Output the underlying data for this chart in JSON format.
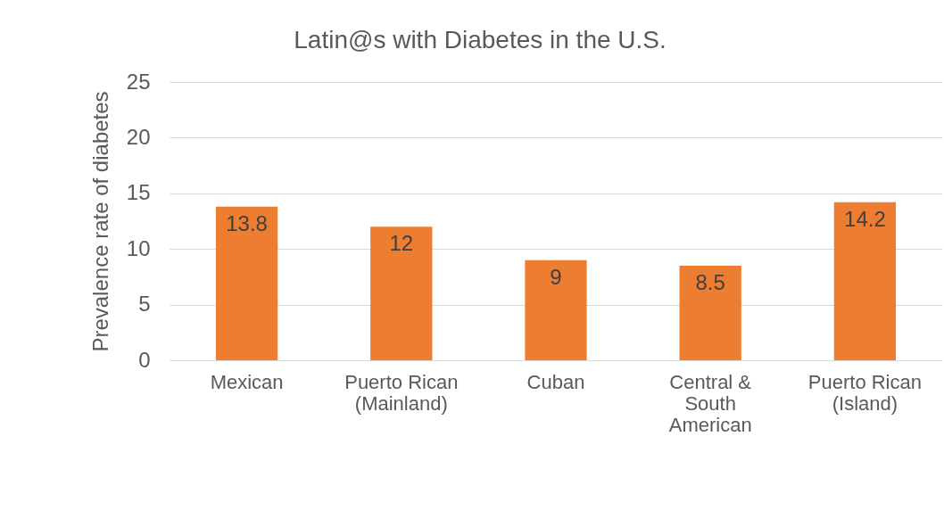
{
  "chart_data": {
    "type": "bar",
    "title": "Latin@s with Diabetes in the U.S.",
    "ylabel": "Prevalence rate of diabetes",
    "categories": [
      "Mexican",
      "Puerto Rican (Mainland)",
      "Cuban",
      "Central & South American",
      "Puerto Rican (Island)"
    ],
    "values": [
      13.8,
      12,
      9,
      8.5,
      14.2
    ],
    "color": "#ed7d31",
    "ylim": [
      0,
      25
    ],
    "yticks": [
      0,
      5,
      10,
      15,
      20,
      25
    ],
    "grid": "y",
    "data_labels": true
  }
}
